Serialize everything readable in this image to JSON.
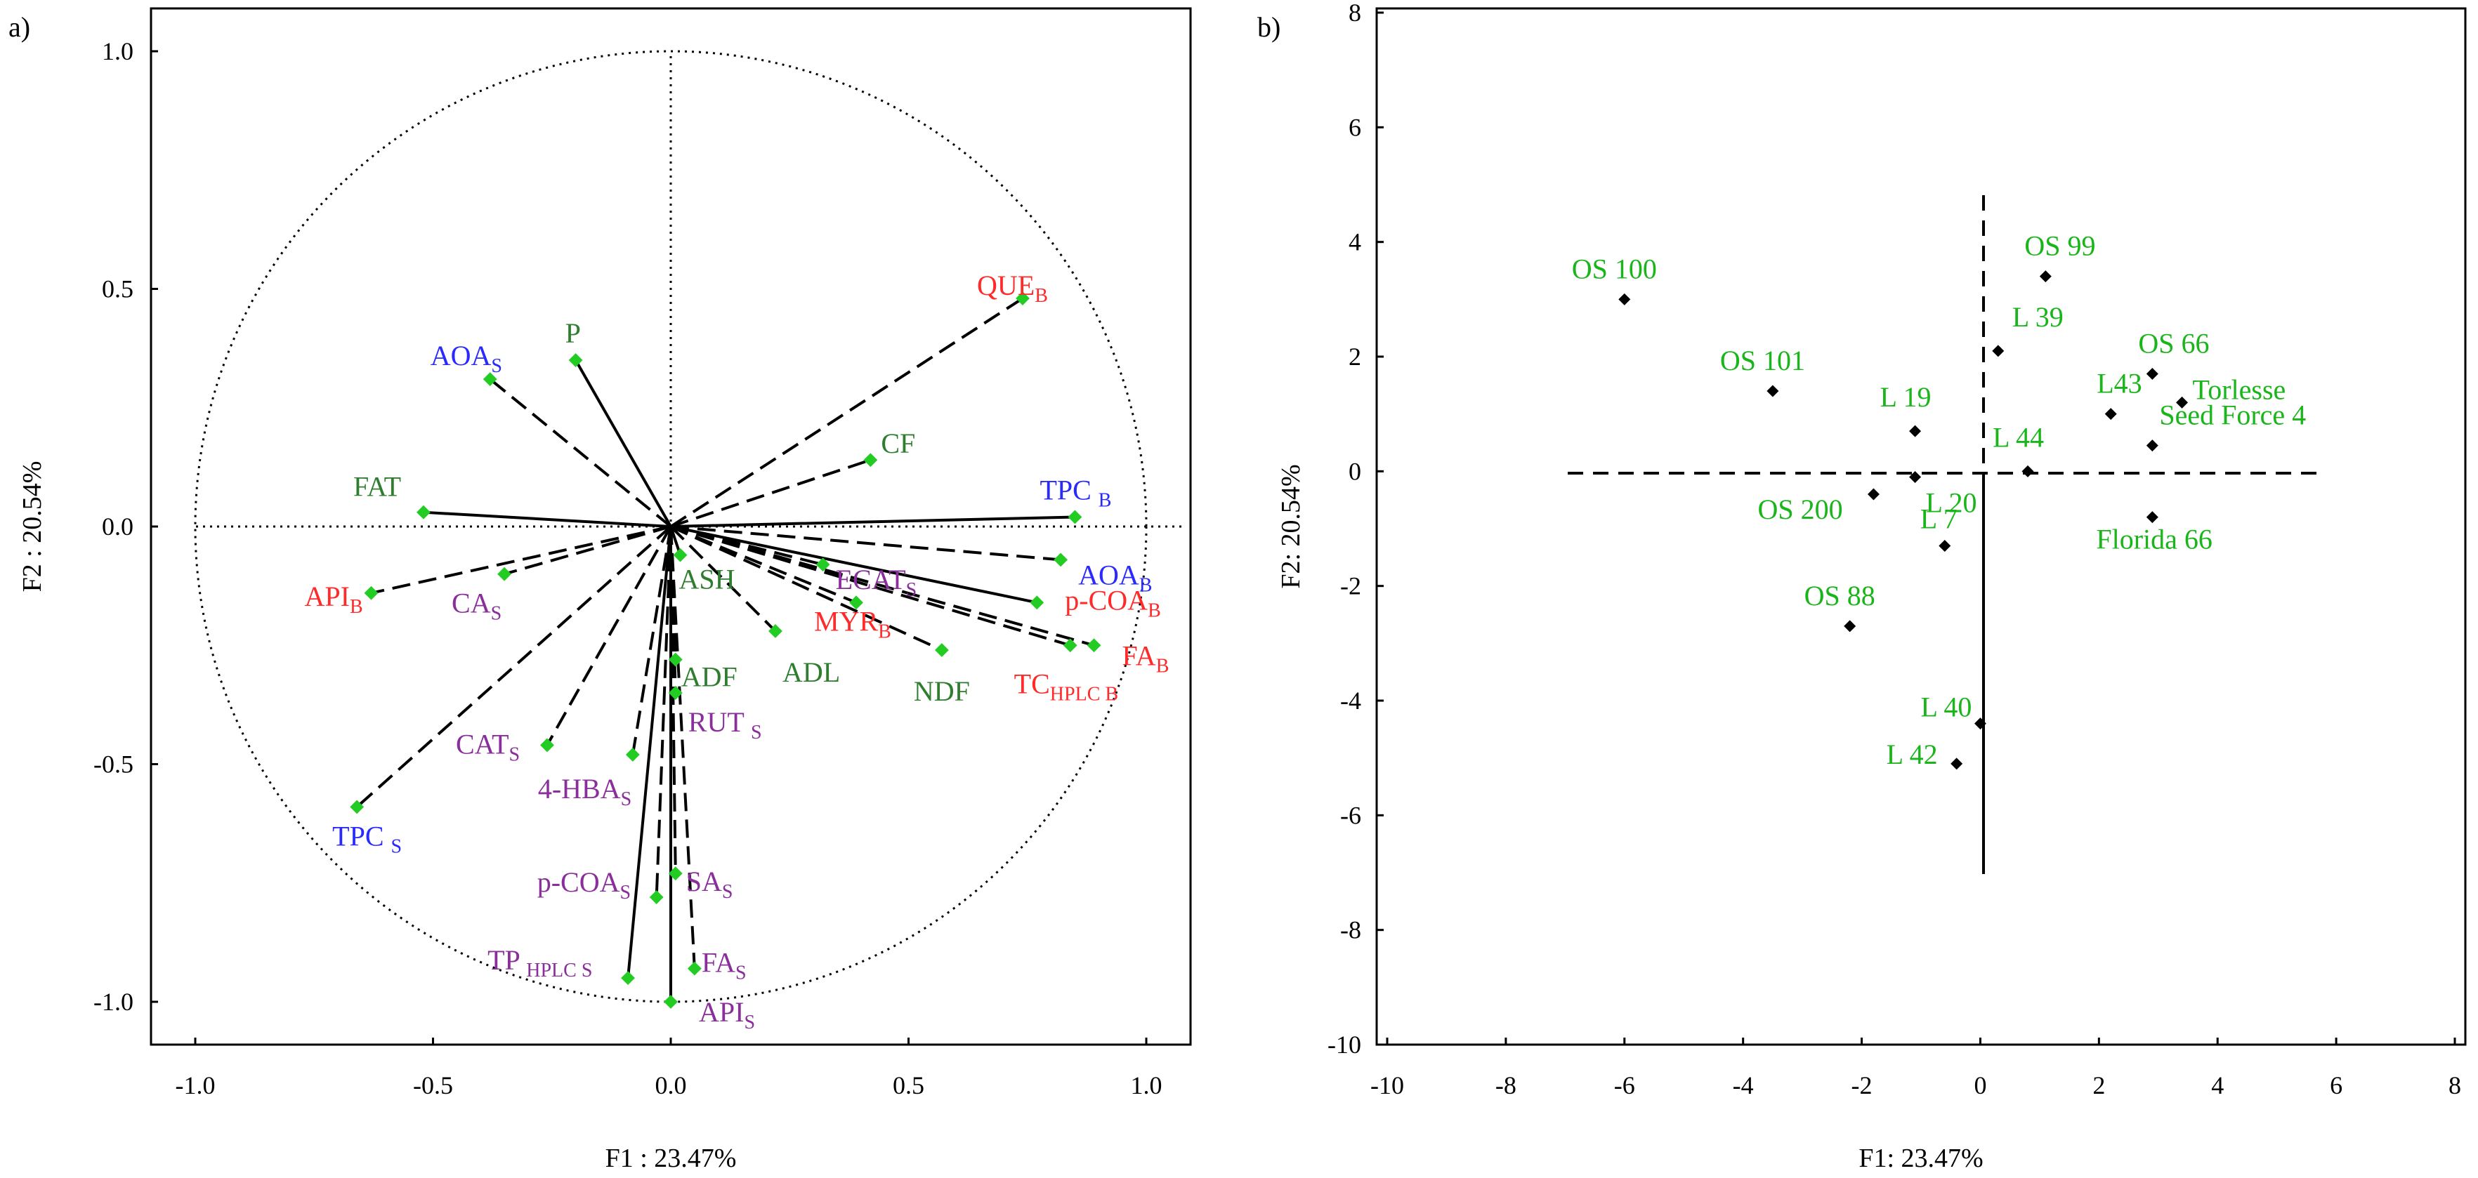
{
  "figure": {
    "panels": [
      {
        "id": "a",
        "panel_label": "a)",
        "xlabel": "F1 : 23.47%",
        "ylabel": "F2 : 20.54%",
        "xticks": [
          "-1.0",
          "-0.5",
          "0.0",
          "0.5",
          "1.0"
        ],
        "yticks": [
          "-1.0",
          "-0.5",
          "0.0",
          "0.5",
          "1.0"
        ]
      },
      {
        "id": "b",
        "panel_label": "b)",
        "xlabel": "F1: 23.47%",
        "ylabel": "F2: 20.54%",
        "xticks": [
          "-10",
          "-8",
          "-6",
          "-4",
          "-2",
          "0",
          "2",
          "4",
          "6",
          "8"
        ],
        "yticks": [
          "-10",
          "-8",
          "-6",
          "-4",
          "-2",
          "0",
          "2",
          "4",
          "6",
          "8"
        ]
      }
    ]
  },
  "colors": {
    "red": "#ff2a2a",
    "blue": "#2a2aff",
    "green": "#2f7d2f",
    "purple": "#8a2e9b",
    "point_green": "#22cc22",
    "cultivar_green": "#1ab51a",
    "axis": "#000000"
  },
  "chart_data": [
    {
      "type": "scatter",
      "subtype": "correlation-circle",
      "panel": "a",
      "xlim": [
        -1.1,
        1.1
      ],
      "ylim": [
        -1.1,
        1.1
      ],
      "xlabel": "F1 : 23.47%",
      "ylabel": "F2 : 20.54%",
      "grid": false,
      "variables": [
        {
          "label": "QUE",
          "sub": "B",
          "x": 0.74,
          "y": 0.48,
          "color": "red",
          "line": "dashed"
        },
        {
          "label": "CF",
          "sub": "",
          "x": 0.42,
          "y": 0.14,
          "color": "green",
          "line": "dashed"
        },
        {
          "label": "TPC ",
          "sub": "B",
          "x": 0.85,
          "y": 0.02,
          "color": "blue",
          "line": "solid"
        },
        {
          "label": "AOA",
          "sub": "B",
          "x": 0.82,
          "y": -0.07,
          "color": "blue",
          "line": "dashed"
        },
        {
          "label": "ECAT",
          "sub": "S",
          "x": 0.32,
          "y": -0.08,
          "color": "purple",
          "line": "dashed"
        },
        {
          "label": "p-COA",
          "sub": "B",
          "x": 0.77,
          "y": -0.16,
          "color": "red",
          "line": "solid"
        },
        {
          "label": "FA",
          "sub": "B",
          "x": 0.89,
          "y": -0.25,
          "color": "red",
          "line": "dashed"
        },
        {
          "label": "TC",
          "sub": "HPLC B",
          "x": 0.84,
          "y": -0.25,
          "color": "red",
          "line": "dashed"
        },
        {
          "label": "MYR",
          "sub": "B",
          "x": 0.39,
          "y": -0.16,
          "color": "red",
          "line": "dashed"
        },
        {
          "label": "NDF",
          "sub": "",
          "x": 0.57,
          "y": -0.26,
          "color": "green",
          "line": "dashed"
        },
        {
          "label": "ADL",
          "sub": "",
          "x": 0.22,
          "y": -0.22,
          "color": "green",
          "line": "dashed"
        },
        {
          "label": "ASH",
          "sub": "",
          "x": 0.02,
          "y": -0.06,
          "color": "green",
          "line": "solid"
        },
        {
          "label": "ADF",
          "sub": "",
          "x": 0.01,
          "y": -0.28,
          "color": "green",
          "line": "dashed"
        },
        {
          "label": "RUT ",
          "sub": "S",
          "x": 0.01,
          "y": -0.35,
          "color": "purple",
          "line": "dashed"
        },
        {
          "label": "SA",
          "sub": "S",
          "x": 0.01,
          "y": -0.73,
          "color": "purple",
          "line": "dashed"
        },
        {
          "label": "FA",
          "sub": "S",
          "x": 0.05,
          "y": -0.93,
          "color": "purple",
          "line": "dashed"
        },
        {
          "label": "API",
          "sub": "S",
          "x": 0.0,
          "y": -1.0,
          "color": "purple",
          "line": "solid"
        },
        {
          "label": "p-COA",
          "sub": "S",
          "x": -0.03,
          "y": -0.78,
          "color": "purple",
          "line": "dashed"
        },
        {
          "label": "TP ",
          "sub": "HPLC S",
          "x": -0.09,
          "y": -0.95,
          "color": "purple",
          "line": "solid"
        },
        {
          "label": "4-HBA",
          "sub": "S",
          "x": -0.08,
          "y": -0.48,
          "color": "purple",
          "line": "dashed"
        },
        {
          "label": "CAT",
          "sub": "S",
          "x": -0.26,
          "y": -0.46,
          "color": "purple",
          "line": "dashed"
        },
        {
          "label": "TPC ",
          "sub": "S",
          "x": -0.66,
          "y": -0.59,
          "color": "blue",
          "line": "dashed"
        },
        {
          "label": "API",
          "sub": "B",
          "x": -0.63,
          "y": -0.14,
          "color": "red",
          "line": "dashed"
        },
        {
          "label": "CA",
          "sub": "S",
          "x": -0.35,
          "y": -0.1,
          "color": "purple",
          "line": "dashed"
        },
        {
          "label": "FAT",
          "sub": "",
          "x": -0.52,
          "y": 0.03,
          "color": "green",
          "line": "solid"
        },
        {
          "label": "AOA",
          "sub": "S",
          "x": -0.38,
          "y": 0.31,
          "color": "blue",
          "line": "dashed"
        },
        {
          "label": "P",
          "sub": "",
          "x": -0.2,
          "y": 0.35,
          "color": "green",
          "line": "solid"
        }
      ]
    },
    {
      "type": "scatter",
      "panel": "b",
      "xlim": [
        -10,
        8
      ],
      "ylim": [
        -10,
        8
      ],
      "xlabel": "F1: 23.47%",
      "ylabel": "F2: 20.54%",
      "grid": false,
      "points": [
        {
          "label": "OS 100",
          "x": -6.0,
          "y": 3.0
        },
        {
          "label": "OS 101",
          "x": -3.5,
          "y": 1.4
        },
        {
          "label": "OS 99",
          "x": 1.1,
          "y": 3.4
        },
        {
          "label": "L 39",
          "x": 0.3,
          "y": 2.1
        },
        {
          "label": "OS 66",
          "x": 2.9,
          "y": 1.7
        },
        {
          "label": "L43",
          "x": 2.2,
          "y": 1.0
        },
        {
          "label": "Torlesse",
          "x": 3.4,
          "y": 1.2
        },
        {
          "label": "Seed Force 4",
          "x": 2.9,
          "y": 0.45
        },
        {
          "label": "L 19",
          "x": -1.1,
          "y": 0.7
        },
        {
          "label": "L 44",
          "x": 0.8,
          "y": 0.0
        },
        {
          "label": "Florida 66",
          "x": 2.9,
          "y": -0.8
        },
        {
          "label": "L 20",
          "x": -1.1,
          "y": -0.1
        },
        {
          "label": "OS 200",
          "x": -1.8,
          "y": -0.4
        },
        {
          "label": "L 7",
          "x": -0.6,
          "y": -1.3
        },
        {
          "label": "OS 88",
          "x": -2.2,
          "y": -2.7
        },
        {
          "label": "L 40",
          "x": 0.0,
          "y": -4.4
        },
        {
          "label": "L 42",
          "x": -0.4,
          "y": -5.1
        }
      ]
    }
  ]
}
